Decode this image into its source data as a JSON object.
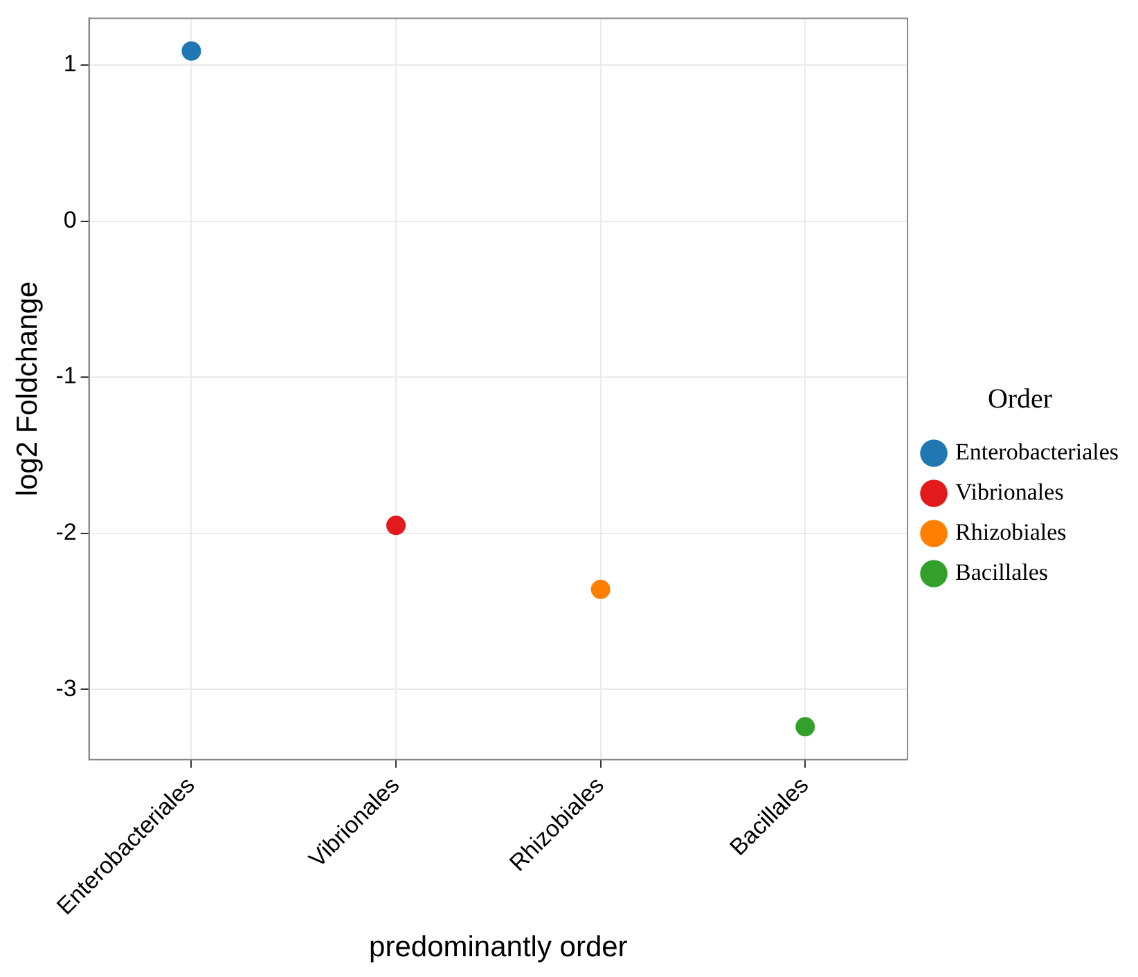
{
  "chart_data": {
    "type": "scatter",
    "xlabel": "predominantly order",
    "ylabel": "log2 Foldchange",
    "legend_title": "Order",
    "categories": [
      "Enterobacteriales",
      "Vibrionales",
      "Rhizobiales",
      "Bacillales"
    ],
    "series": [
      {
        "name": "Enterobacteriales",
        "color": "#1f78b4",
        "values": [
          1.09,
          null,
          null,
          null
        ]
      },
      {
        "name": "Vibrionales",
        "color": "#e31a1c",
        "values": [
          null,
          -1.95,
          null,
          null
        ]
      },
      {
        "name": "Rhizobiales",
        "color": "#ff7f00",
        "values": [
          null,
          null,
          -2.36,
          null
        ]
      },
      {
        "name": "Bacillales",
        "color": "#33a02c",
        "values": [
          null,
          null,
          null,
          -3.24
        ]
      }
    ],
    "ylim": [
      -3.45,
      1.3
    ],
    "yticks": [
      -3,
      -2,
      -1,
      0,
      1
    ],
    "grid": true,
    "legend": "right",
    "marker": "circle"
  }
}
